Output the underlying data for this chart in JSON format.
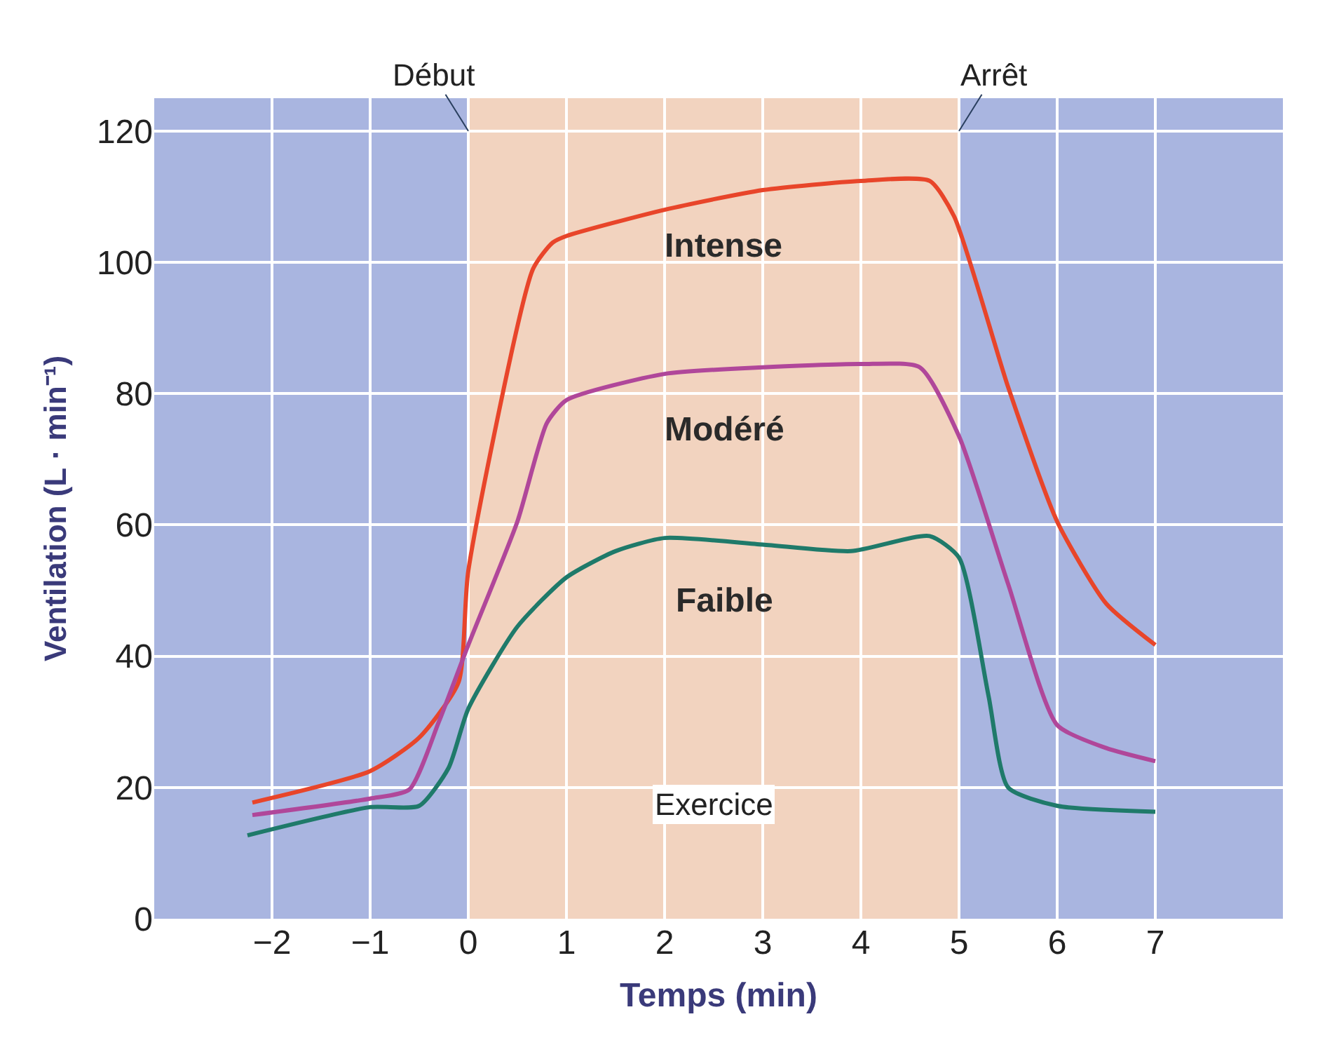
{
  "chart_data": {
    "type": "line",
    "xlabel": "Temps (min)",
    "ylabel": "Ventilation (L · min⁻¹)",
    "xlim": [
      -3.2,
      8.3
    ],
    "ylim": [
      0,
      125
    ],
    "xticks": [
      {
        "value": -2,
        "label": "−2"
      },
      {
        "value": -1,
        "label": "−1"
      },
      0,
      1,
      2,
      3,
      4,
      5,
      6,
      7
    ],
    "yticks": [
      0,
      20,
      40,
      60,
      80,
      100,
      120
    ],
    "grid": true,
    "legend": false,
    "marker": "none",
    "line_style": "solid",
    "series": [
      {
        "name": "Intense",
        "color": "#e8452a",
        "x": [
          -2.2,
          -1,
          -0.5,
          -0.1,
          0,
          0.66,
          0.86,
          1,
          2,
          3,
          4,
          4.7,
          4.95,
          5.5,
          6,
          6.5,
          7
        ],
        "values": [
          17.7,
          22.5,
          27.6,
          36,
          53,
          99,
          103,
          104,
          108,
          111,
          112.4,
          112.4,
          107,
          81,
          60.5,
          48,
          41.7
        ]
      },
      {
        "name": "Modéré",
        "color": "#b0479a",
        "x": [
          -2.2,
          -1,
          -0.6,
          -0.3,
          0,
          0.5,
          0.8,
          1,
          2,
          3,
          4,
          4.6,
          5,
          5.5,
          6,
          6.5,
          7
        ],
        "values": [
          15.8,
          18.3,
          19.7,
          30,
          41.7,
          60.5,
          75.5,
          79,
          83,
          84,
          84.5,
          84,
          73.5,
          51,
          29.5,
          26,
          24
        ]
      },
      {
        "name": "Faible",
        "color": "#1f7a6a",
        "x": [
          -2.25,
          -1,
          -0.5,
          -0.2,
          0,
          0.5,
          1,
          1.5,
          2,
          3,
          3.9,
          4.7,
          5,
          5.3,
          5.5,
          6,
          7
        ],
        "values": [
          12.7,
          17,
          17.2,
          23,
          32,
          44.5,
          52,
          56,
          58,
          57,
          56,
          58.3,
          55,
          34,
          20,
          17.2,
          16.3
        ]
      }
    ],
    "bands": [
      {
        "axis": "x",
        "from": 0,
        "to": 5,
        "label": "Exercice",
        "color": "#f2d3bf"
      }
    ],
    "annotations": [
      {
        "text": "Début",
        "x": 0,
        "y": 120
      },
      {
        "text": "Arrêt",
        "x": 5,
        "y": 120
      }
    ]
  }
}
